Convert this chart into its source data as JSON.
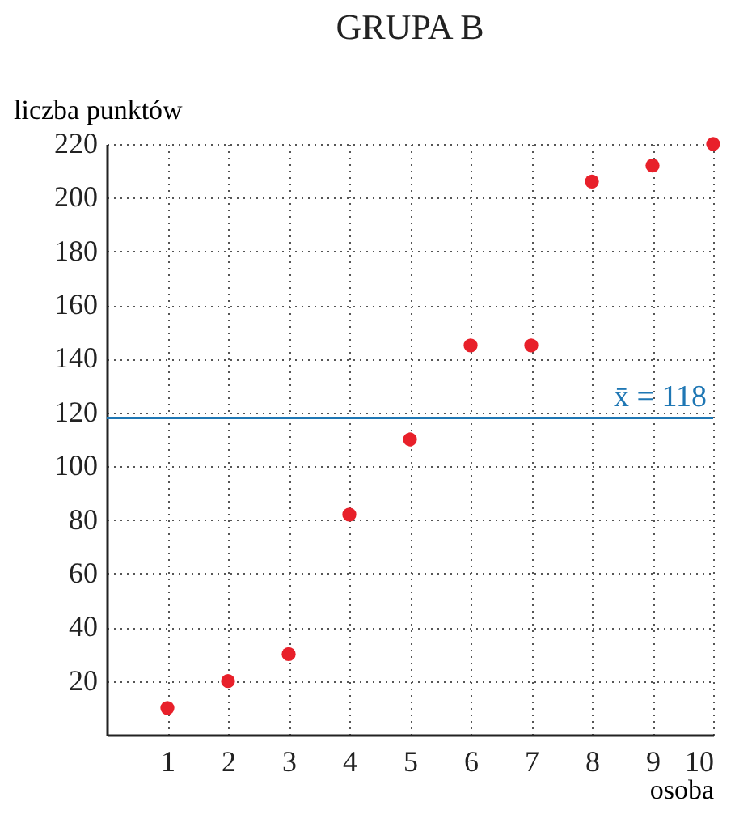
{
  "chart_data": {
    "type": "scatter",
    "title": "GRUPA B",
    "xlabel": "osoba",
    "ylabel": "liczba punktów",
    "x": [
      1,
      2,
      3,
      4,
      5,
      6,
      7,
      8,
      9,
      10
    ],
    "series": [
      {
        "color": "#e8202a",
        "values": [
          10,
          20,
          30,
          82,
          110,
          145,
          145,
          206,
          212,
          220
        ]
      }
    ],
    "xlim": [
      0,
      10
    ],
    "xticks": [
      1,
      2,
      3,
      4,
      5,
      6,
      7,
      8,
      9,
      10
    ],
    "ylim": [
      0,
      220
    ],
    "yticks": [
      20,
      40,
      60,
      80,
      100,
      120,
      140,
      160,
      180,
      200,
      220
    ],
    "ref_lines": [
      {
        "axis": "y",
        "value": 118,
        "label": "x̄ = 118",
        "color": "#1f77b4"
      }
    ],
    "grid": true,
    "marker": "circle"
  }
}
